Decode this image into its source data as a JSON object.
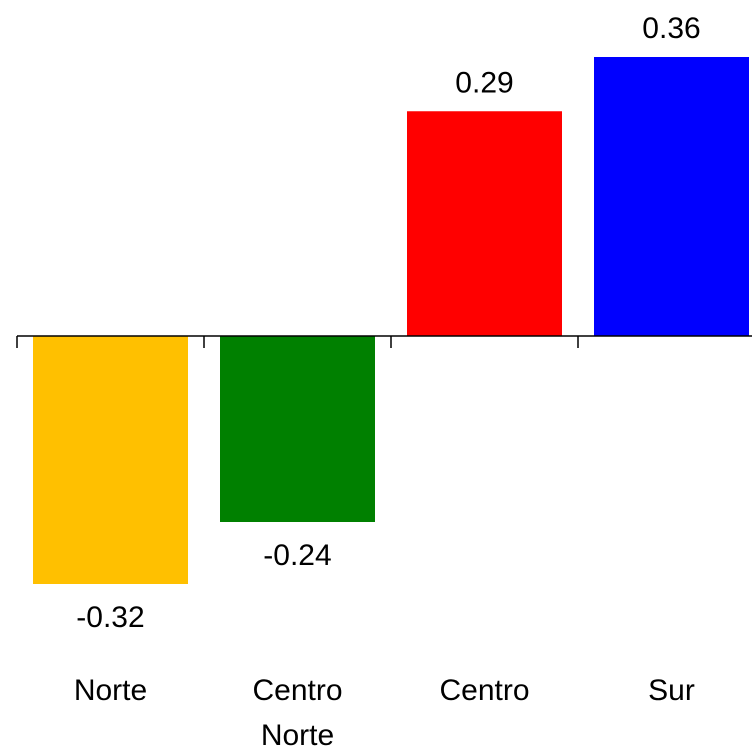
{
  "chart_data": {
    "type": "bar",
    "categories": [
      "Norte",
      "Centro\nNorte",
      "Centro",
      "Sur"
    ],
    "values": [
      -0.32,
      -0.24,
      0.29,
      0.36
    ],
    "value_labels": [
      "-0.32",
      "-0.24",
      "0.29",
      "0.36"
    ],
    "colors": [
      "#FFC000",
      "#008000",
      "#FF0000",
      "#0000FF"
    ],
    "title": "",
    "xlabel": "",
    "ylabel": "",
    "ylim": [
      -0.32,
      0.36
    ],
    "grid": false,
    "legend": "none"
  }
}
